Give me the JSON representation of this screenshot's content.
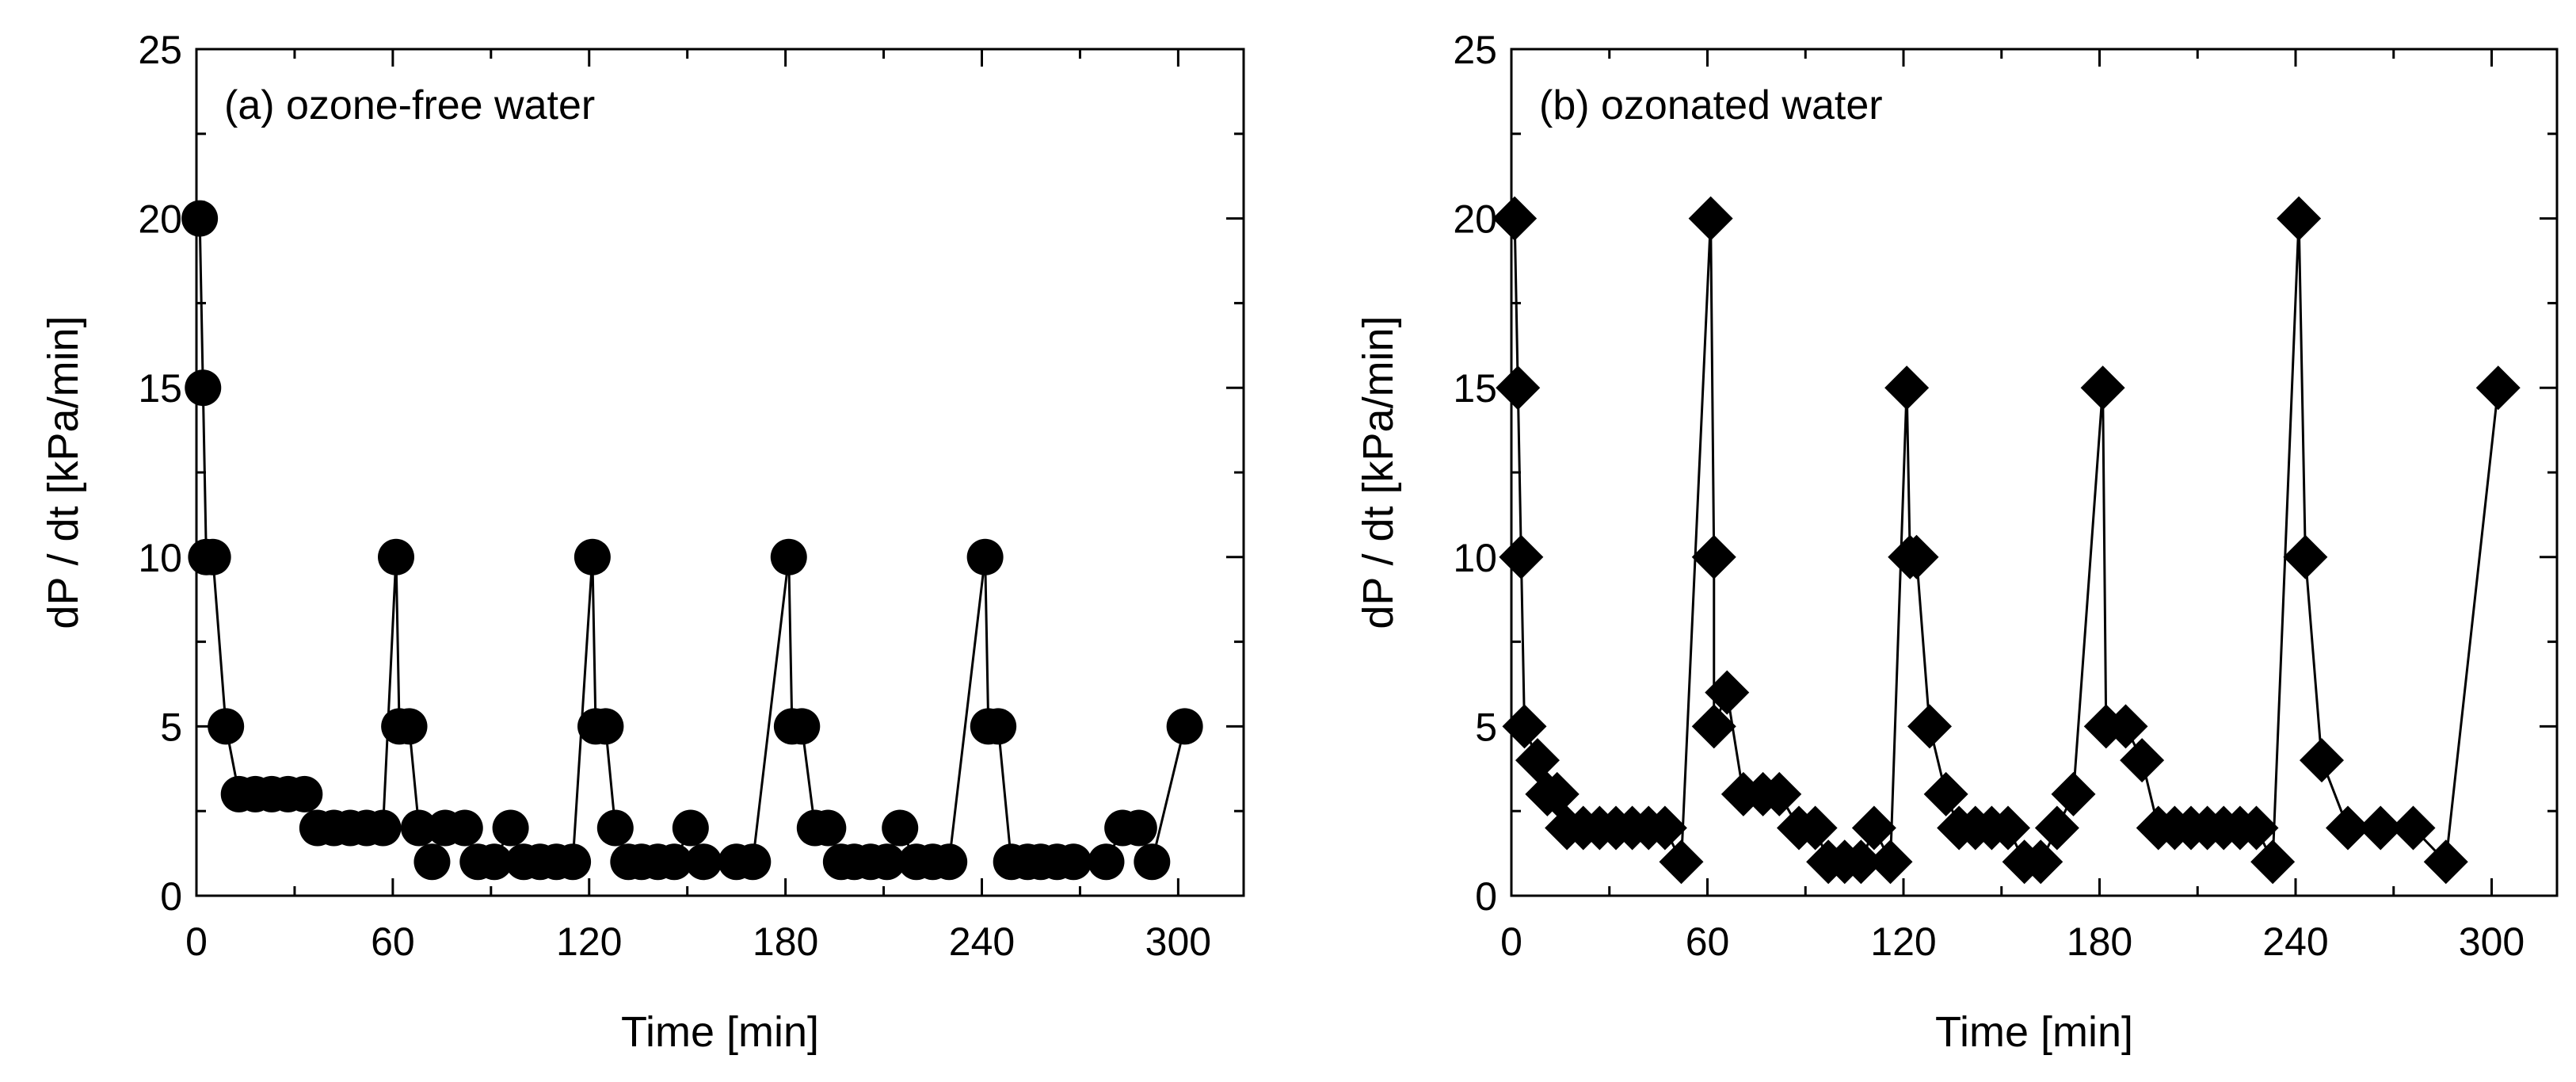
{
  "chart_data": [
    {
      "type": "scatter",
      "title": "(a) ozone-free water",
      "xlabel": "Time [min]",
      "ylabel": "dP / dt [kPa/min]",
      "xlim": [
        0,
        320
      ],
      "ylim": [
        0,
        25
      ],
      "xticks": [
        0,
        60,
        120,
        180,
        240,
        300
      ],
      "yticks": [
        0,
        5,
        10,
        15,
        20,
        25
      ],
      "marker": "circle",
      "connected": true,
      "grid": false,
      "series": [
        {
          "name": "ozone-free water",
          "points": [
            [
              1,
              20
            ],
            [
              2,
              15
            ],
            [
              3,
              10
            ],
            [
              5,
              10
            ],
            [
              9,
              5
            ],
            [
              13,
              3
            ],
            [
              18,
              3
            ],
            [
              23,
              3
            ],
            [
              28,
              3
            ],
            [
              33,
              3
            ],
            [
              37,
              2
            ],
            [
              42,
              2
            ],
            [
              47,
              2
            ],
            [
              52,
              2
            ],
            [
              57,
              2
            ],
            [
              61,
              10
            ],
            [
              62,
              5
            ],
            [
              65,
              5
            ],
            [
              68,
              2
            ],
            [
              72,
              1
            ],
            [
              76,
              2
            ],
            [
              82,
              2
            ],
            [
              86,
              1
            ],
            [
              91,
              1
            ],
            [
              96,
              2
            ],
            [
              100,
              1
            ],
            [
              105,
              1
            ],
            [
              110,
              1
            ],
            [
              115,
              1
            ],
            [
              121,
              10
            ],
            [
              122,
              5
            ],
            [
              125,
              5
            ],
            [
              128,
              2
            ],
            [
              132,
              1
            ],
            [
              136,
              1
            ],
            [
              141,
              1
            ],
            [
              146,
              1
            ],
            [
              151,
              2
            ],
            [
              155,
              1
            ],
            [
              165,
              1
            ],
            [
              170,
              1
            ],
            [
              181,
              10
            ],
            [
              182,
              5
            ],
            [
              185,
              5
            ],
            [
              189,
              2
            ],
            [
              193,
              2
            ],
            [
              197,
              1
            ],
            [
              201,
              1
            ],
            [
              206,
              1
            ],
            [
              211,
              1
            ],
            [
              215,
              2
            ],
            [
              220,
              1
            ],
            [
              225,
              1
            ],
            [
              230,
              1
            ],
            [
              241,
              10
            ],
            [
              242,
              5
            ],
            [
              245,
              5
            ],
            [
              249,
              1
            ],
            [
              254,
              1
            ],
            [
              258,
              1
            ],
            [
              263,
              1
            ],
            [
              268,
              1
            ],
            [
              278,
              1
            ],
            [
              283,
              2
            ],
            [
              288,
              2
            ],
            [
              292,
              1
            ],
            [
              302,
              5
            ]
          ]
        }
      ]
    },
    {
      "type": "scatter",
      "title": "(b) ozonated water",
      "xlabel": "Time [min]",
      "ylabel": "dP / dt [kPa/min]",
      "xlim": [
        0,
        320
      ],
      "ylim": [
        0,
        25
      ],
      "xticks": [
        0,
        60,
        120,
        180,
        240,
        300
      ],
      "yticks": [
        0,
        5,
        10,
        15,
        20,
        25
      ],
      "marker": "diamond",
      "connected": true,
      "grid": false,
      "series": [
        {
          "name": "ozonated water",
          "points": [
            [
              1,
              20
            ],
            [
              2,
              15
            ],
            [
              3,
              10
            ],
            [
              4,
              5
            ],
            [
              8,
              4
            ],
            [
              11,
              3
            ],
            [
              14,
              3
            ],
            [
              17,
              2
            ],
            [
              22,
              2
            ],
            [
              27,
              2
            ],
            [
              32,
              2
            ],
            [
              37,
              2
            ],
            [
              42,
              2
            ],
            [
              47,
              2
            ],
            [
              52,
              1
            ],
            [
              61,
              20
            ],
            [
              62,
              10
            ],
            [
              62,
              5
            ],
            [
              66,
              6
            ],
            [
              71,
              3
            ],
            [
              77,
              3
            ],
            [
              82,
              3
            ],
            [
              88,
              2
            ],
            [
              93,
              2
            ],
            [
              97,
              1
            ],
            [
              102,
              1
            ],
            [
              107,
              1
            ],
            [
              111,
              2
            ],
            [
              116,
              1
            ],
            [
              121,
              15
            ],
            [
              122,
              10
            ],
            [
              124,
              10
            ],
            [
              128,
              5
            ],
            [
              133,
              3
            ],
            [
              137,
              2
            ],
            [
              142,
              2
            ],
            [
              147,
              2
            ],
            [
              152,
              2
            ],
            [
              157,
              1
            ],
            [
              162,
              1
            ],
            [
              167,
              2
            ],
            [
              172,
              3
            ],
            [
              181,
              15
            ],
            [
              182,
              5
            ],
            [
              188,
              5
            ],
            [
              193,
              4
            ],
            [
              198,
              2
            ],
            [
              203,
              2
            ],
            [
              208,
              2
            ],
            [
              213,
              2
            ],
            [
              218,
              2
            ],
            [
              223,
              2
            ],
            [
              228,
              2
            ],
            [
              233,
              1
            ],
            [
              241,
              20
            ],
            [
              243,
              10
            ],
            [
              248,
              4
            ],
            [
              256,
              2
            ],
            [
              266,
              2
            ],
            [
              276,
              2
            ],
            [
              286,
              1
            ],
            [
              302,
              15
            ]
          ]
        }
      ]
    }
  ]
}
